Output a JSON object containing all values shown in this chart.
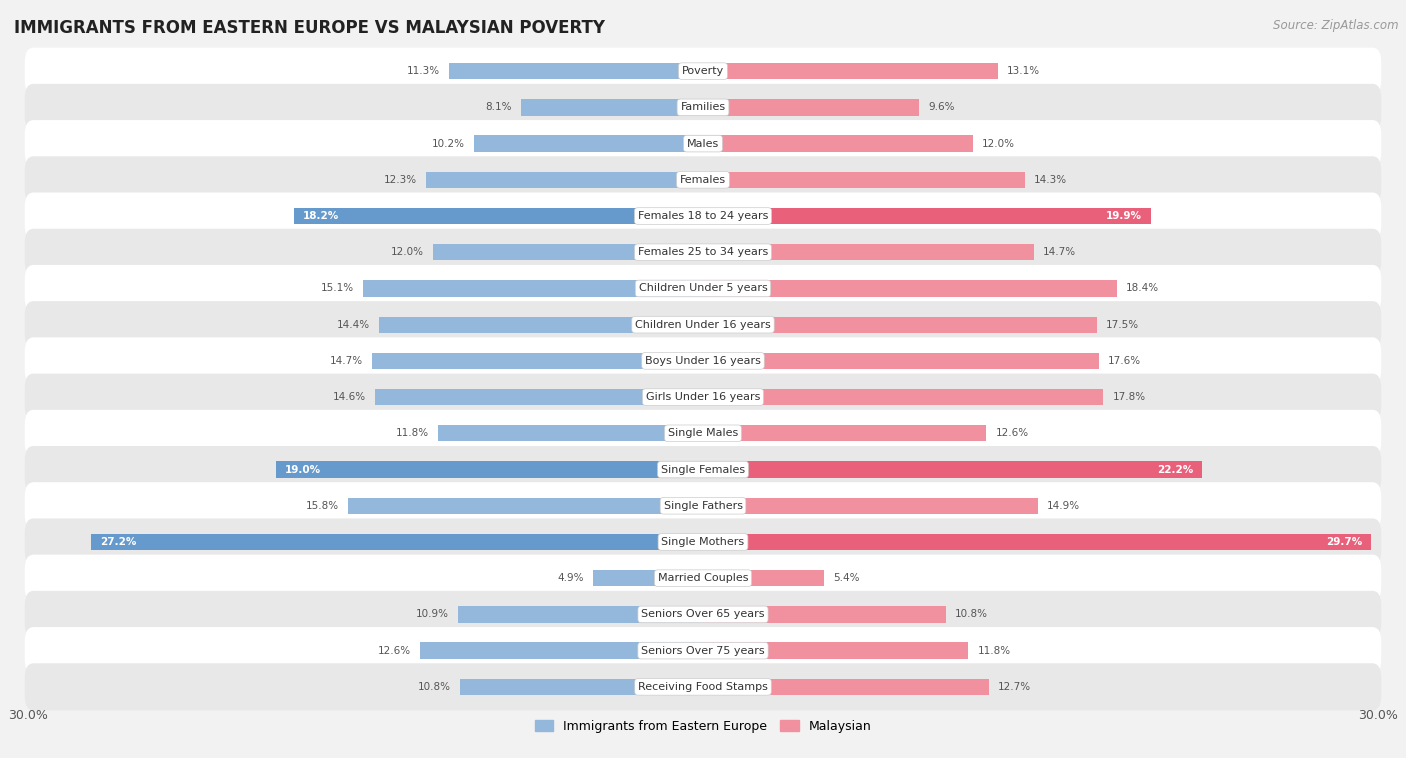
{
  "title": "IMMIGRANTS FROM EASTERN EUROPE VS MALAYSIAN POVERTY",
  "source": "Source: ZipAtlas.com",
  "categories": [
    "Poverty",
    "Families",
    "Males",
    "Females",
    "Females 18 to 24 years",
    "Females 25 to 34 years",
    "Children Under 5 years",
    "Children Under 16 years",
    "Boys Under 16 years",
    "Girls Under 16 years",
    "Single Males",
    "Single Females",
    "Single Fathers",
    "Single Mothers",
    "Married Couples",
    "Seniors Over 65 years",
    "Seniors Over 75 years",
    "Receiving Food Stamps"
  ],
  "left_values": [
    11.3,
    8.1,
    10.2,
    12.3,
    18.2,
    12.0,
    15.1,
    14.4,
    14.7,
    14.6,
    11.8,
    19.0,
    15.8,
    27.2,
    4.9,
    10.9,
    12.6,
    10.8
  ],
  "right_values": [
    13.1,
    9.6,
    12.0,
    14.3,
    19.9,
    14.7,
    18.4,
    17.5,
    17.6,
    17.8,
    12.6,
    22.2,
    14.9,
    29.7,
    5.4,
    10.8,
    11.8,
    12.7
  ],
  "left_color": "#93b8db",
  "right_color": "#f1909f",
  "left_highlight_color": "#6699cc",
  "right_highlight_color": "#e8607a",
  "highlight_rows": [
    4,
    11,
    13
  ],
  "left_label": "Immigrants from Eastern Europe",
  "right_label": "Malaysian",
  "axis_max": 30.0,
  "background_color": "#f2f2f2",
  "row_bg_even": "#ffffff",
  "row_bg_odd": "#e8e8e8",
  "bar_height": 0.45,
  "title_fontsize": 12,
  "source_fontsize": 8.5,
  "label_fontsize": 8.0,
  "value_fontsize": 7.5,
  "cat_fontsize": 8.0
}
